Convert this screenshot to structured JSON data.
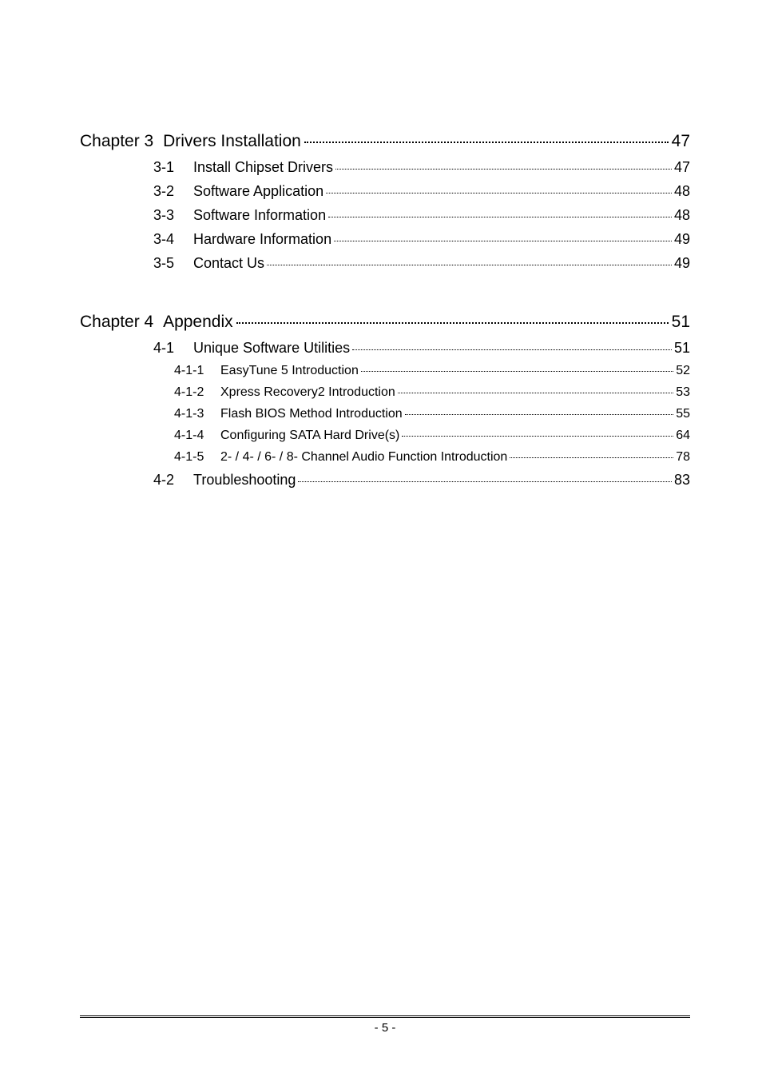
{
  "page_number_label": "- 5 -",
  "toc": [
    {
      "kind": "chapter",
      "pre": "Chapter 3",
      "title": "Drivers Installation",
      "page": "47",
      "children": [
        {
          "kind": "section",
          "num": "3-1",
          "title": "Install Chipset Drivers",
          "page": "47"
        },
        {
          "kind": "section",
          "num": "3-2",
          "title": "Software Application",
          "page": "48"
        },
        {
          "kind": "section",
          "num": "3-3",
          "title": "Software Information",
          "page": "48"
        },
        {
          "kind": "section",
          "num": "3-4",
          "title": "Hardware Information",
          "page": "49"
        },
        {
          "kind": "section",
          "num": "3-5",
          "title": "Contact Us",
          "page": "49"
        }
      ]
    },
    {
      "kind": "chapter",
      "pre": "Chapter 4",
      "title": "Appendix",
      "page": "51",
      "children": [
        {
          "kind": "section",
          "num": "4-1",
          "title": "Unique Software Utilities",
          "page": "51"
        },
        {
          "kind": "subsection",
          "num": "4-1-1",
          "title": "EasyTune 5 Introduction",
          "page": "52"
        },
        {
          "kind": "subsection",
          "num": "4-1-2",
          "title": "Xpress Recovery2 Introduction",
          "page": "53"
        },
        {
          "kind": "subsection",
          "num": "4-1-3",
          "title": "Flash BIOS Method Introduction",
          "page": "55"
        },
        {
          "kind": "subsection",
          "num": "4-1-4",
          "title": "Configuring SATA Hard Drive(s)",
          "page": "64"
        },
        {
          "kind": "subsection",
          "num": "4-1-5",
          "title": "2- / 4- / 6- / 8- Channel Audio Function Introduction",
          "page": "78"
        },
        {
          "kind": "section",
          "num": "4-2",
          "title": "Troubleshooting",
          "page": "83"
        }
      ]
    }
  ]
}
